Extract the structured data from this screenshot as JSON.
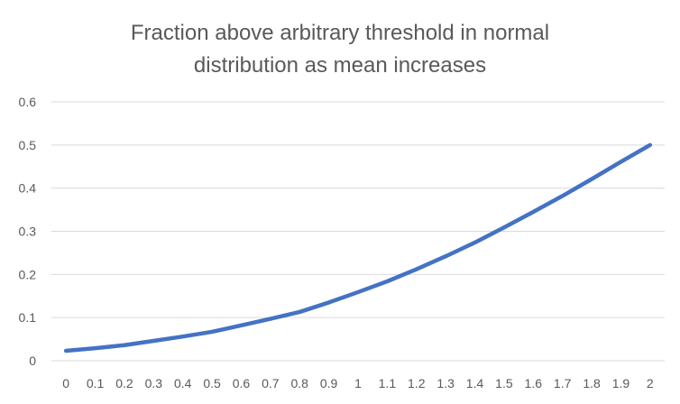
{
  "chart_data": {
    "type": "line",
    "title_lines": [
      "Fraction above arbitrary threshold in normal",
      "distribution as mean increases"
    ],
    "xlabel": "",
    "ylabel": "",
    "categories": [
      "0",
      "0.1",
      "0.2",
      "0.3",
      "0.4",
      "0.5",
      "0.6",
      "0.7",
      "0.8",
      "0.9",
      "1",
      "1.1",
      "1.2",
      "1.3",
      "1.4",
      "1.5",
      "1.6",
      "1.7",
      "1.8",
      "1.9",
      "2"
    ],
    "series": [
      {
        "values": [
          0.023,
          0.029,
          0.036,
          0.046,
          0.056,
          0.067,
          0.082,
          0.097,
          0.113,
          0.135,
          0.159,
          0.184,
          0.212,
          0.242,
          0.274,
          0.309,
          0.345,
          0.382,
          0.421,
          0.461,
          0.5
        ],
        "color": "#4472c4"
      }
    ],
    "ylim": [
      0,
      0.6
    ],
    "yticks": [
      "0",
      "0.1",
      "0.2",
      "0.3",
      "0.4",
      "0.5",
      "0.6"
    ],
    "grid": true,
    "legend": "none"
  }
}
